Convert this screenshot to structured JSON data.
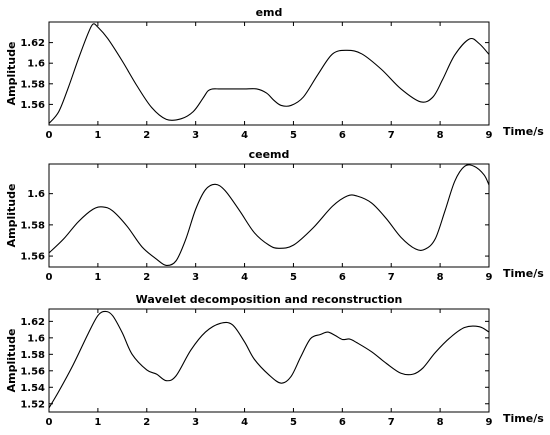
{
  "chart_data": [
    {
      "type": "line",
      "title": "emd",
      "xlabel": "Time/s",
      "ylabel": "Amplitude",
      "xlim": [
        0,
        9
      ],
      "ylim": [
        1.54,
        1.64
      ],
      "xticks": [
        0,
        1,
        2,
        3,
        4,
        5,
        6,
        7,
        8,
        9
      ],
      "yticks": [
        1.56,
        1.58,
        1.6,
        1.62
      ],
      "ytick_labels": [
        "1.56",
        "1.58",
        "1.6",
        "1.62"
      ],
      "grid": false,
      "series": [
        {
          "x": [
            0,
            0.2,
            0.4,
            0.6,
            0.8,
            0.9,
            1.0,
            1.2,
            1.5,
            1.8,
            2.1,
            2.4,
            2.7,
            2.95,
            3.15,
            3.25,
            3.35,
            3.5,
            3.75,
            4.0,
            4.25,
            4.45,
            4.6,
            4.75,
            4.95,
            5.2,
            5.5,
            5.8,
            6.1,
            6.4,
            6.8,
            7.2,
            7.6,
            7.85,
            8.05,
            8.3,
            8.6,
            8.8,
            9.0
          ],
          "y": [
            1.5415,
            1.553,
            1.577,
            1.604,
            1.629,
            1.638,
            1.635,
            1.624,
            1.602,
            1.578,
            1.557,
            1.5455,
            1.546,
            1.553,
            1.566,
            1.573,
            1.575,
            1.575,
            1.575,
            1.575,
            1.575,
            1.571,
            1.564,
            1.559,
            1.559,
            1.567,
            1.589,
            1.609,
            1.6125,
            1.609,
            1.594,
            1.575,
            1.5625,
            1.567,
            1.584,
            1.608,
            1.6235,
            1.619,
            1.6085
          ]
        }
      ]
    },
    {
      "type": "line",
      "title": "ceemd",
      "xlabel": "Time/s",
      "ylabel": "Amplitude",
      "xlim": [
        0,
        9
      ],
      "ylim": [
        1.553,
        1.619
      ],
      "xticks": [
        0,
        1,
        2,
        3,
        4,
        5,
        6,
        7,
        8,
        9
      ],
      "yticks": [
        1.56,
        1.58,
        1.6
      ],
      "ytick_labels": [
        "1.56",
        "1.58",
        "1.6"
      ],
      "grid": false,
      "series": [
        {
          "x": [
            0,
            0.3,
            0.6,
            0.9,
            1.1,
            1.3,
            1.6,
            1.9,
            2.2,
            2.4,
            2.6,
            2.8,
            3.0,
            3.2,
            3.4,
            3.6,
            3.9,
            4.2,
            4.5,
            4.7,
            5.0,
            5.4,
            5.8,
            6.1,
            6.3,
            6.6,
            6.9,
            7.2,
            7.5,
            7.7,
            7.9,
            8.1,
            8.3,
            8.5,
            8.7,
            8.9,
            9.0
          ],
          "y": [
            1.562,
            1.571,
            1.582,
            1.59,
            1.5915,
            1.589,
            1.579,
            1.566,
            1.558,
            1.554,
            1.557,
            1.571,
            1.59,
            1.6025,
            1.606,
            1.602,
            1.589,
            1.575,
            1.567,
            1.565,
            1.567,
            1.578,
            1.592,
            1.5985,
            1.5985,
            1.594,
            1.584,
            1.572,
            1.5645,
            1.5645,
            1.571,
            1.589,
            1.608,
            1.6175,
            1.6175,
            1.612,
            1.6055
          ]
        }
      ]
    },
    {
      "type": "line",
      "title": "Wavelet decomposition and reconstruction",
      "xlabel": "Time/s",
      "ylabel": "Amplitude",
      "xlim": [
        0,
        9
      ],
      "ylim": [
        1.51,
        1.635
      ],
      "xticks": [
        0,
        1,
        2,
        3,
        4,
        5,
        6,
        7,
        8,
        9
      ],
      "yticks": [
        1.52,
        1.54,
        1.56,
        1.58,
        1.6,
        1.62
      ],
      "ytick_labels": [
        "1.52",
        "1.54",
        "1.56",
        "1.58",
        "1.6",
        "1.62"
      ],
      "grid": false,
      "series": [
        {
          "x": [
            0,
            0.2,
            0.5,
            0.8,
            1.0,
            1.15,
            1.3,
            1.5,
            1.7,
            2.0,
            2.2,
            2.4,
            2.6,
            2.9,
            3.2,
            3.5,
            3.75,
            4.0,
            4.2,
            4.5,
            4.75,
            4.95,
            5.15,
            5.35,
            5.55,
            5.7,
            5.85,
            6.0,
            6.15,
            6.3,
            6.6,
            6.9,
            7.2,
            7.45,
            7.65,
            7.9,
            8.2,
            8.5,
            8.8,
            9.0
          ],
          "y": [
            1.515,
            1.535,
            1.568,
            1.605,
            1.627,
            1.632,
            1.627,
            1.606,
            1.58,
            1.561,
            1.556,
            1.548,
            1.554,
            1.585,
            1.607,
            1.6175,
            1.616,
            1.595,
            1.574,
            1.555,
            1.545,
            1.553,
            1.577,
            1.599,
            1.604,
            1.607,
            1.603,
            1.598,
            1.5985,
            1.594,
            1.583,
            1.569,
            1.557,
            1.556,
            1.5635,
            1.582,
            1.6,
            1.6125,
            1.6135,
            1.607
          ]
        }
      ]
    }
  ]
}
